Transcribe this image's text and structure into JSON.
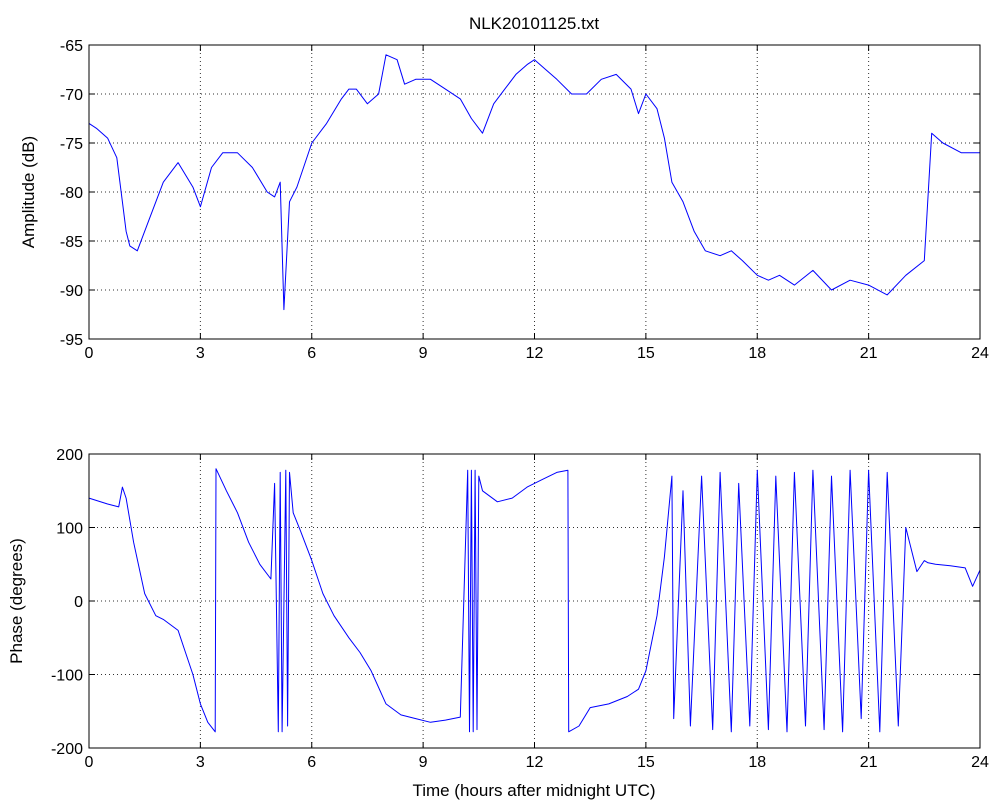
{
  "chart_data": [
    {
      "type": "line",
      "title": "NLK20101125.txt",
      "xlabel": "",
      "ylabel": "Amplitude (dB)",
      "xlim": [
        0,
        24
      ],
      "ylim": [
        -95,
        -65
      ],
      "xticks": [
        "0",
        "3",
        "6",
        "9",
        "12",
        "15",
        "18",
        "21",
        "24"
      ],
      "yticks": [
        "-65",
        "-70",
        "-75",
        "-80",
        "-85",
        "-90",
        "-95"
      ],
      "grid": true,
      "line_color": "#0000ff",
      "x": [
        0,
        0.2,
        0.5,
        0.75,
        0.9,
        1.0,
        1.1,
        1.3,
        1.6,
        2.0,
        2.4,
        2.8,
        3.0,
        3.3,
        3.6,
        4.0,
        4.4,
        4.8,
        5.0,
        5.15,
        5.25,
        5.4,
        5.6,
        6.0,
        6.4,
        6.8,
        7.0,
        7.2,
        7.5,
        7.8,
        8.0,
        8.3,
        8.5,
        8.8,
        9.2,
        9.6,
        10.0,
        10.3,
        10.6,
        10.9,
        11.2,
        11.5,
        11.8,
        12.0,
        12.3,
        12.6,
        13.0,
        13.4,
        13.8,
        14.2,
        14.6,
        14.8,
        15.0,
        15.3,
        15.5,
        15.7,
        16.0,
        16.3,
        16.6,
        17.0,
        17.3,
        17.6,
        18.0,
        18.3,
        18.6,
        19.0,
        19.5,
        20.0,
        20.5,
        21.0,
        21.5,
        22.0,
        22.5,
        22.7,
        23.0,
        23.5,
        24.0
      ],
      "y": [
        -73,
        -73.5,
        -74.5,
        -76.5,
        -81,
        -84,
        -85.5,
        -86,
        -83,
        -79,
        -77,
        -79.5,
        -81.5,
        -77.5,
        -76,
        -76,
        -77.5,
        -80,
        -80.5,
        -79,
        -92,
        -81,
        -79.5,
        -75,
        -73,
        -70.5,
        -69.5,
        -69.5,
        -71,
        -70,
        -66,
        -66.5,
        -69,
        -68.5,
        -68.5,
        -69.5,
        -70.5,
        -72.5,
        -74,
        -71,
        -69.5,
        -68,
        -67,
        -66.5,
        -67.5,
        -68.5,
        -70,
        -70,
        -68.5,
        -68,
        -69.5,
        -72,
        -70,
        -71.5,
        -74.5,
        -79,
        -81,
        -84,
        -86,
        -86.5,
        -86,
        -87,
        -88.5,
        -89,
        -88.5,
        -89.5,
        -88,
        -90,
        -89,
        -89.5,
        -90.5,
        -88.5,
        -87,
        -74,
        -75,
        -76,
        -76
      ]
    },
    {
      "type": "line",
      "title": "",
      "xlabel": "Time (hours after midnight UTC)",
      "ylabel": "Phase (degrees)",
      "xlim": [
        0,
        24
      ],
      "ylim": [
        -200,
        200
      ],
      "xticks": [
        "0",
        "3",
        "6",
        "9",
        "12",
        "15",
        "18",
        "21",
        "24"
      ],
      "yticks": [
        "200",
        "100",
        "0",
        "-100",
        "-200"
      ],
      "grid": true,
      "line_color": "#0000ff",
      "x": [
        0,
        0.5,
        0.8,
        0.9,
        1.0,
        1.2,
        1.5,
        1.8,
        2.0,
        2.4,
        2.6,
        2.8,
        3.0,
        3.2,
        3.4,
        3.42,
        3.7,
        4.0,
        4.3,
        4.6,
        4.9,
        5.0,
        5.1,
        5.15,
        5.2,
        5.3,
        5.35,
        5.4,
        5.5,
        5.7,
        6.0,
        6.3,
        6.6,
        7.0,
        7.3,
        7.6,
        8.0,
        8.4,
        8.8,
        9.2,
        9.6,
        10.0,
        10.2,
        10.25,
        10.3,
        10.35,
        10.4,
        10.45,
        10.5,
        10.6,
        11.0,
        11.4,
        11.8,
        12.2,
        12.6,
        12.9,
        12.92,
        13.2,
        13.5,
        14.0,
        14.5,
        14.8,
        15.0,
        15.3,
        15.5,
        15.7,
        15.75,
        16.0,
        16.2,
        16.5,
        16.8,
        17.0,
        17.3,
        17.5,
        17.8,
        18.0,
        18.3,
        18.5,
        18.8,
        19.0,
        19.3,
        19.5,
        19.8,
        20.0,
        20.3,
        20.5,
        20.8,
        21.0,
        21.3,
        21.5,
        21.8,
        22.0,
        22.3,
        22.5,
        22.6,
        22.8,
        23.2,
        23.6,
        23.8,
        24.0
      ],
      "y": [
        140,
        132,
        128,
        155,
        140,
        80,
        10,
        -20,
        -25,
        -40,
        -70,
        -100,
        -140,
        -165,
        -178,
        180,
        150,
        120,
        80,
        50,
        30,
        160,
        -178,
        175,
        -178,
        178,
        -170,
        175,
        120,
        95,
        55,
        10,
        -20,
        -50,
        -70,
        -95,
        -140,
        -155,
        -160,
        -165,
        -162,
        -158,
        178,
        -178,
        178,
        -178,
        178,
        -175,
        170,
        150,
        135,
        140,
        155,
        165,
        175,
        178,
        -178,
        -170,
        -145,
        -140,
        -130,
        -120,
        -95,
        -20,
        60,
        170,
        -160,
        150,
        -170,
        170,
        -175,
        175,
        -178,
        160,
        -170,
        178,
        -175,
        170,
        -178,
        175,
        -170,
        178,
        -175,
        170,
        -178,
        178,
        -160,
        178,
        -178,
        175,
        -170,
        100,
        40,
        55,
        52,
        50,
        48,
        45,
        20,
        42
      ]
    }
  ]
}
